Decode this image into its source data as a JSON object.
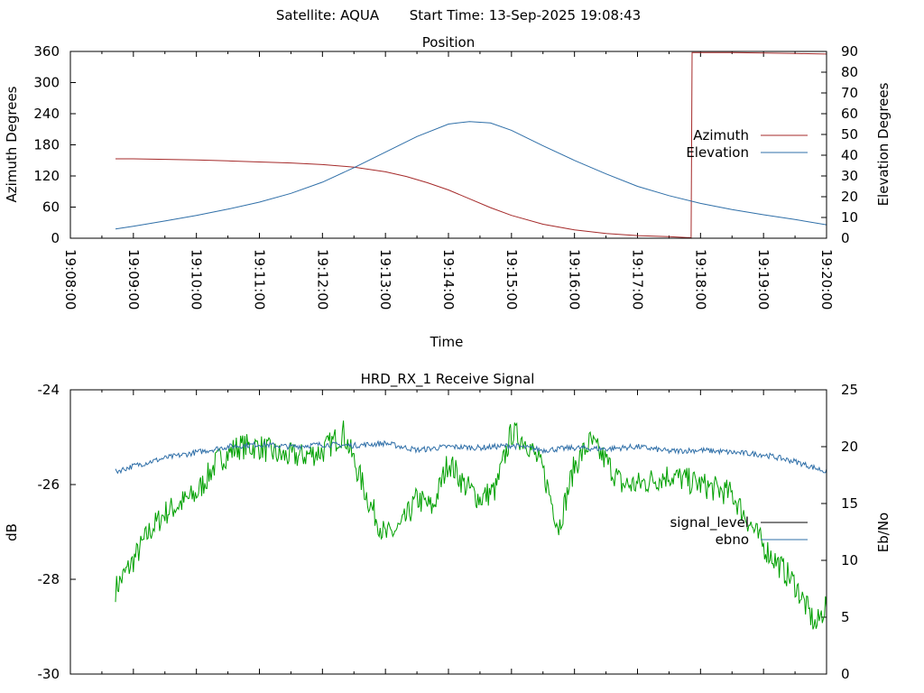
{
  "header": {
    "satellite": "Satellite: AQUA",
    "start_time": "Start Time: 13-Sep-2025 19:08:43"
  },
  "colors": {
    "azimuth": "#a52a2a",
    "elevation": "#2f6fa8",
    "signal_level": "#00a000",
    "ebno": "#2f6fa8",
    "signal_level_legend": "#000000"
  },
  "chart_data": [
    {
      "type": "line",
      "title": "Position",
      "xlabel": "Time",
      "ylabel_left": "Azimuth Degrees",
      "ylabel_right": "Elevation Degrees",
      "x_tick_labels": [
        "19:08:00",
        "19:09:00",
        "19:10:00",
        "19:11:00",
        "19:12:00",
        "19:13:00",
        "19:14:00",
        "19:15:00",
        "19:16:00",
        "19:17:00",
        "19:18:00",
        "19:19:00",
        "19:20:00"
      ],
      "xlim": [
        "19:08:00",
        "19:20:00"
      ],
      "ylim_left": [
        0,
        360
      ],
      "ylim_right": [
        0,
        90
      ],
      "y_ticks_left": [
        0,
        60,
        120,
        180,
        240,
        300,
        360
      ],
      "y_ticks_right": [
        0,
        10,
        20,
        30,
        40,
        50,
        60,
        70,
        80,
        90
      ],
      "legend_position": "right-middle",
      "series": [
        {
          "name": "Azimuth",
          "axis": "left",
          "x": [
            "19:08:43",
            "19:09:00",
            "19:09:30",
            "19:10:00",
            "19:10:30",
            "19:11:00",
            "19:11:30",
            "19:12:00",
            "19:12:30",
            "19:13:00",
            "19:13:20",
            "19:13:40",
            "19:14:00",
            "19:14:20",
            "19:14:40",
            "19:15:00",
            "19:15:30",
            "19:16:00",
            "19:16:30",
            "19:17:00",
            "19:17:30",
            "19:17:50",
            "19:17:51",
            "19:17:52",
            "19:18:30",
            "19:19:00",
            "19:19:30",
            "19:20:00"
          ],
          "values": [
            153,
            153,
            152,
            151,
            149,
            147,
            145,
            142,
            137,
            128,
            119,
            107,
            93,
            76,
            59,
            44,
            27,
            16,
            9,
            5,
            3,
            1,
            0,
            358,
            358,
            357,
            356,
            355
          ]
        },
        {
          "name": "Elevation",
          "axis": "right",
          "x": [
            "19:08:43",
            "19:09:00",
            "19:09:30",
            "19:10:00",
            "19:10:30",
            "19:11:00",
            "19:11:30",
            "19:12:00",
            "19:12:30",
            "19:13:00",
            "19:13:30",
            "19:14:00",
            "19:14:20",
            "19:14:40",
            "19:15:00",
            "19:15:30",
            "19:16:00",
            "19:16:30",
            "19:17:00",
            "19:17:30",
            "19:18:00",
            "19:18:30",
            "19:19:00",
            "19:19:30",
            "19:20:00"
          ],
          "values": [
            4.5,
            5.8,
            8.3,
            11.0,
            14.0,
            17.4,
            21.6,
            27.0,
            34.0,
            41.5,
            49.0,
            55.0,
            56.2,
            55.5,
            52.0,
            44.5,
            37.5,
            31.0,
            25.0,
            20.5,
            16.8,
            13.8,
            11.3,
            9.0,
            6.5
          ]
        }
      ]
    },
    {
      "type": "line",
      "title": "HRD_RX_1 Receive Signal",
      "xlabel": "",
      "ylabel_left": "dB",
      "ylabel_right": "Eb/No",
      "xlim": [
        "19:08:00",
        "19:20:00"
      ],
      "ylim_left": [
        -30,
        -24
      ],
      "ylim_right": [
        0,
        25
      ],
      "y_ticks_left": [
        -30,
        -28,
        -26,
        -24
      ],
      "y_ticks_right": [
        0,
        5,
        10,
        15,
        20,
        25
      ],
      "legend_position": "right-middle",
      "series": [
        {
          "name": "signal_level",
          "axis": "left",
          "x": [
            "19:08:43",
            "19:09:00",
            "19:09:15",
            "19:09:30",
            "19:10:00",
            "19:10:20",
            "19:10:40",
            "19:11:00",
            "19:11:20",
            "19:11:40",
            "19:12:00",
            "19:12:20",
            "19:12:30",
            "19:12:45",
            "19:13:00",
            "19:13:15",
            "19:13:30",
            "19:13:45",
            "19:14:00",
            "19:14:15",
            "19:14:30",
            "19:14:45",
            "19:15:00",
            "19:15:15",
            "19:15:30",
            "19:15:45",
            "19:16:00",
            "19:16:15",
            "19:16:30",
            "19:16:45",
            "19:17:00",
            "19:17:30",
            "19:18:00",
            "19:18:30",
            "19:19:00",
            "19:19:30",
            "19:19:50",
            "19:20:00"
          ],
          "values": [
            -28.2,
            -27.6,
            -27.0,
            -26.6,
            -26.2,
            -25.5,
            -25.2,
            -25.2,
            -25.4,
            -25.4,
            -25.3,
            -24.9,
            -25.5,
            -26.4,
            -27.1,
            -26.9,
            -26.3,
            -26.5,
            -25.5,
            -26.0,
            -26.3,
            -26.1,
            -24.9,
            -25.1,
            -25.7,
            -26.9,
            -25.6,
            -25.1,
            -25.5,
            -26.0,
            -26.0,
            -25.8,
            -26.0,
            -26.2,
            -27.3,
            -28.1,
            -29.0,
            -28.5
          ]
        },
        {
          "name": "ebno",
          "axis": "right",
          "x": [
            "19:08:43",
            "19:09:00",
            "19:09:30",
            "19:10:00",
            "19:10:30",
            "19:11:00",
            "19:11:30",
            "19:12:00",
            "19:12:30",
            "19:13:00",
            "19:13:30",
            "19:14:00",
            "19:14:30",
            "19:15:00",
            "19:15:30",
            "19:16:00",
            "19:16:30",
            "19:17:00",
            "19:17:30",
            "19:18:00",
            "19:18:30",
            "19:19:00",
            "19:19:30",
            "19:20:00"
          ],
          "values": [
            17.8,
            18.3,
            19.0,
            19.5,
            20.0,
            20.2,
            20.0,
            20.2,
            20.1,
            20.3,
            19.7,
            20.0,
            19.9,
            20.1,
            19.7,
            19.9,
            19.8,
            20.0,
            19.6,
            19.7,
            19.5,
            19.3,
            18.7,
            17.8
          ]
        }
      ]
    }
  ]
}
